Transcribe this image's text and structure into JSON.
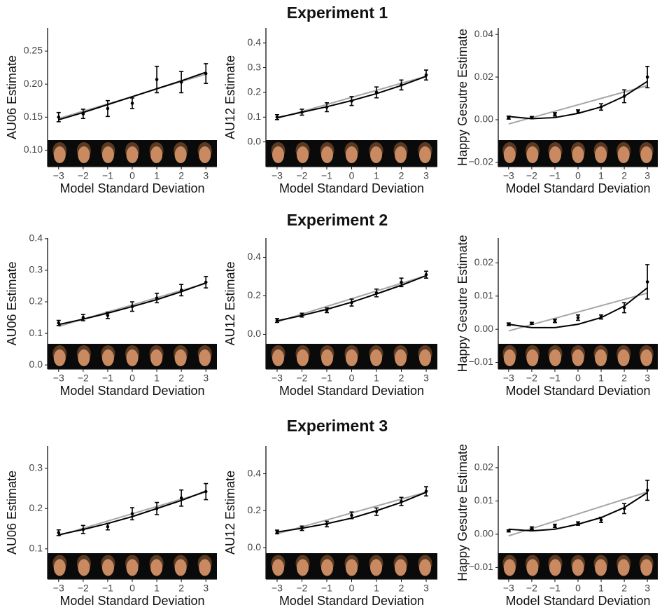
{
  "chart_data": [
    {
      "type": "errorbar",
      "xlabel": "Model Standard Deviation",
      "ylabel": "AU06  Estimate",
      "x": [
        -3,
        -2,
        -1,
        0,
        1,
        2,
        3
      ],
      "xticks": [
        {
          "value": -3,
          "label": "−3"
        },
        {
          "value": -2,
          "label": "−2"
        },
        {
          "value": -1,
          "label": "−1"
        },
        0,
        1,
        2,
        3
      ],
      "values": [
        0.15,
        0.155,
        0.163,
        0.171,
        0.207,
        0.203,
        0.216
      ],
      "errors": [
        0.007,
        0.007,
        0.012,
        0.008,
        0.02,
        0.016,
        0.015
      ],
      "fit": [
        0.146,
        0.157,
        0.169,
        0.181,
        0.193,
        0.205,
        0.218
      ],
      "linear": [
        0.148,
        0.159,
        0.17,
        0.181,
        0.193,
        0.204,
        0.215
      ],
      "ylim": [
        0.075,
        0.285
      ],
      "yticks": [
        {
          "value": 0.1,
          "label": "0.10"
        },
        0.15,
        {
          "value": 0.2,
          "label": "0.20"
        },
        0.25
      ]
    },
    {
      "type": "errorbar",
      "title": "Experiment 1",
      "xlabel": "Model Standard Deviation",
      "ylabel": "AU12 Estimate",
      "x": [
        -3,
        -2,
        -1,
        0,
        1,
        2,
        3
      ],
      "xticks": [
        {
          "value": -3,
          "label": "−3"
        },
        {
          "value": -2,
          "label": "−2"
        },
        {
          "value": -1,
          "label": "−1"
        },
        0,
        1,
        2,
        3
      ],
      "values": [
        0.1,
        0.12,
        0.14,
        0.165,
        0.2,
        0.23,
        0.27
      ],
      "errors": [
        0.01,
        0.012,
        0.018,
        0.018,
        0.022,
        0.02,
        0.02
      ],
      "fit": [
        0.098,
        0.12,
        0.142,
        0.167,
        0.195,
        0.228,
        0.265
      ],
      "linear": [
        0.095,
        0.123,
        0.151,
        0.18,
        0.208,
        0.237,
        0.265
      ],
      "ylim": [
        -0.1,
        0.46
      ],
      "yticks": [
        {
          "value": 0,
          "label": "0.0"
        },
        0.1,
        0.2,
        0.3,
        0.4
      ]
    },
    {
      "type": "errorbar",
      "xlabel": "Model Standard Deviation",
      "ylabel": "Happy Gesutre Estimate",
      "x": [
        -3,
        -2,
        -1,
        0,
        1,
        2,
        3
      ],
      "xticks": [
        {
          "value": -3,
          "label": "−3"
        },
        {
          "value": -2,
          "label": "−2"
        },
        {
          "value": -1,
          "label": "−1"
        },
        0,
        1,
        2,
        3
      ],
      "values": [
        0.001,
        0.001,
        0.0025,
        0.0038,
        0.006,
        0.011,
        0.02
      ],
      "errors": [
        0.0007,
        0.0005,
        0.0008,
        0.0008,
        0.0015,
        0.003,
        0.005
      ],
      "fit": [
        0.0015,
        0.0005,
        0.001,
        0.003,
        0.006,
        0.011,
        0.018
      ],
      "linear": [
        -0.002,
        0.001,
        0.004,
        0.007,
        0.01,
        0.013,
        0.016
      ],
      "ylim": [
        -0.022,
        0.043
      ],
      "yticks": [
        {
          "value": -0.02,
          "label": "−0.02"
        },
        {
          "value": 0,
          "label": "0.00"
        },
        0.02,
        0.04
      ]
    },
    {
      "type": "errorbar",
      "xlabel": "Model Standard Deviation",
      "ylabel": "AU06  Estimate",
      "x": [
        -3,
        -2,
        -1,
        0,
        1,
        2,
        3
      ],
      "xticks": [
        {
          "value": -3,
          "label": "−3"
        },
        {
          "value": -2,
          "label": "−2"
        },
        {
          "value": -1,
          "label": "−1"
        },
        0,
        1,
        2,
        3
      ],
      "values": [
        0.133,
        0.15,
        0.157,
        0.185,
        0.212,
        0.237,
        0.262
      ],
      "errors": [
        0.008,
        0.01,
        0.01,
        0.015,
        0.015,
        0.018,
        0.018
      ],
      "fit": [
        0.128,
        0.145,
        0.164,
        0.185,
        0.207,
        0.232,
        0.26
      ],
      "linear": [
        0.122,
        0.145,
        0.168,
        0.19,
        0.213,
        0.236,
        0.258
      ],
      "ylim": [
        -0.013,
        0.402
      ],
      "yticks": [
        {
          "value": 0,
          "label": "0.0"
        },
        0.1,
        0.2,
        0.3,
        0.4
      ]
    },
    {
      "type": "errorbar",
      "title": "Experiment 2",
      "xlabel": "Model Standard Deviation",
      "ylabel": "AU12 Estimate",
      "x": [
        -3,
        -2,
        -1,
        0,
        1,
        2,
        3
      ],
      "xticks": [
        {
          "value": -3,
          "label": "−3"
        },
        {
          "value": -2,
          "label": "−2"
        },
        {
          "value": -1,
          "label": "−1"
        },
        0,
        1,
        2,
        3
      ],
      "values": [
        0.072,
        0.1,
        0.125,
        0.165,
        0.215,
        0.27,
        0.31
      ],
      "errors": [
        0.01,
        0.01,
        0.012,
        0.018,
        0.02,
        0.022,
        0.018
      ],
      "fit": [
        0.07,
        0.098,
        0.13,
        0.167,
        0.21,
        0.255,
        0.305
      ],
      "linear": [
        0.065,
        0.105,
        0.145,
        0.185,
        0.225,
        0.265,
        0.305
      ],
      "ylim": [
        -0.18,
        0.5
      ],
      "yticks": [
        {
          "value": 0,
          "label": "0.0"
        },
        0.2,
        0.4
      ]
    },
    {
      "type": "errorbar",
      "xlabel": "Model Standard Deviation",
      "ylabel": "Happy Gesutre Estimate",
      "x": [
        -3,
        -2,
        -1,
        0,
        1,
        2,
        3
      ],
      "xticks": [
        {
          "value": -3,
          "label": "−3"
        },
        {
          "value": -2,
          "label": "−2"
        },
        {
          "value": -1,
          "label": "−1"
        },
        0,
        1,
        2,
        3
      ],
      "values": [
        0.0015,
        0.0018,
        0.0025,
        0.0035,
        0.0037,
        0.0065,
        0.0143
      ],
      "errors": [
        0.0004,
        0.0003,
        0.0005,
        0.0008,
        0.0006,
        0.0015,
        0.0052
      ],
      "fit": [
        0.0015,
        0.0005,
        0.0005,
        0.0015,
        0.0035,
        0.007,
        0.0125
      ],
      "linear": [
        -0.0005,
        0.0014,
        0.0033,
        0.0052,
        0.0071,
        0.009,
        0.0109
      ],
      "ylim": [
        -0.012,
        0.0275
      ],
      "yticks": [
        {
          "value": -0.01,
          "label": "−0.01"
        },
        {
          "value": 0,
          "label": "0.00"
        },
        0.01,
        0.02
      ]
    },
    {
      "type": "errorbar",
      "xlabel": "Model Standard Deviation",
      "ylabel": "AU06  Estimate",
      "x": [
        -3,
        -2,
        -1,
        0,
        1,
        2,
        3
      ],
      "xticks": [
        {
          "value": -3,
          "label": "−3"
        },
        {
          "value": -2,
          "label": "−2"
        },
        {
          "value": -1,
          "label": "−1"
        },
        0,
        1,
        2,
        3
      ],
      "values": [
        0.14,
        0.148,
        0.155,
        0.187,
        0.2,
        0.226,
        0.242
      ],
      "errors": [
        0.007,
        0.01,
        0.008,
        0.015,
        0.015,
        0.02,
        0.02
      ],
      "fit": [
        0.135,
        0.148,
        0.163,
        0.18,
        0.2,
        0.22,
        0.243
      ],
      "linear": [
        0.133,
        0.151,
        0.169,
        0.187,
        0.205,
        0.223,
        0.241
      ],
      "ylim": [
        0.025,
        0.355
      ],
      "yticks": [
        0.1,
        0.2,
        0.3
      ]
    },
    {
      "type": "errorbar",
      "title": "Experiment 3",
      "xlabel": "Model Standard Deviation",
      "ylabel": "AU12 Estimate",
      "x": [
        -3,
        -2,
        -1,
        0,
        1,
        2,
        3
      ],
      "xticks": [
        {
          "value": -3,
          "label": "−3"
        },
        {
          "value": -2,
          "label": "−2"
        },
        {
          "value": -1,
          "label": "−1"
        },
        0,
        1,
        2,
        3
      ],
      "values": [
        0.085,
        0.105,
        0.128,
        0.175,
        0.195,
        0.25,
        0.305
      ],
      "errors": [
        0.01,
        0.012,
        0.015,
        0.018,
        0.02,
        0.022,
        0.025
      ],
      "fit": [
        0.085,
        0.105,
        0.13,
        0.16,
        0.2,
        0.245,
        0.3
      ],
      "linear": [
        0.075,
        0.113,
        0.15,
        0.188,
        0.225,
        0.263,
        0.3
      ],
      "ylim": [
        -0.17,
        0.55
      ],
      "yticks": [
        {
          "value": 0,
          "label": "0.0"
        },
        0.2,
        0.4
      ]
    },
    {
      "type": "errorbar",
      "xlabel": "Model Standard Deviation",
      "ylabel": "Happy Gesutre Estimate",
      "x": [
        -3,
        -2,
        -1,
        0,
        1,
        2,
        3
      ],
      "xticks": [
        {
          "value": -3,
          "label": "−3"
        },
        {
          "value": -2,
          "label": "−2"
        },
        {
          "value": -1,
          "label": "−1"
        },
        0,
        1,
        2,
        3
      ],
      "values": [
        0.001,
        0.0018,
        0.0025,
        0.0032,
        0.0043,
        0.0077,
        0.0132
      ],
      "errors": [
        0.0003,
        0.0004,
        0.0005,
        0.0005,
        0.0008,
        0.0015,
        0.003
      ],
      "fit": [
        0.0015,
        0.001,
        0.0015,
        0.003,
        0.005,
        0.008,
        0.0125
      ],
      "linear": [
        -0.0005,
        0.0017,
        0.0039,
        0.0061,
        0.0083,
        0.0105,
        0.0127
      ],
      "ylim": [
        -0.0135,
        0.0265
      ],
      "yticks": [
        {
          "value": -0.01,
          "label": "−0.01"
        },
        {
          "value": 0,
          "label": "0.00"
        },
        0.01,
        0.02
      ]
    }
  ]
}
